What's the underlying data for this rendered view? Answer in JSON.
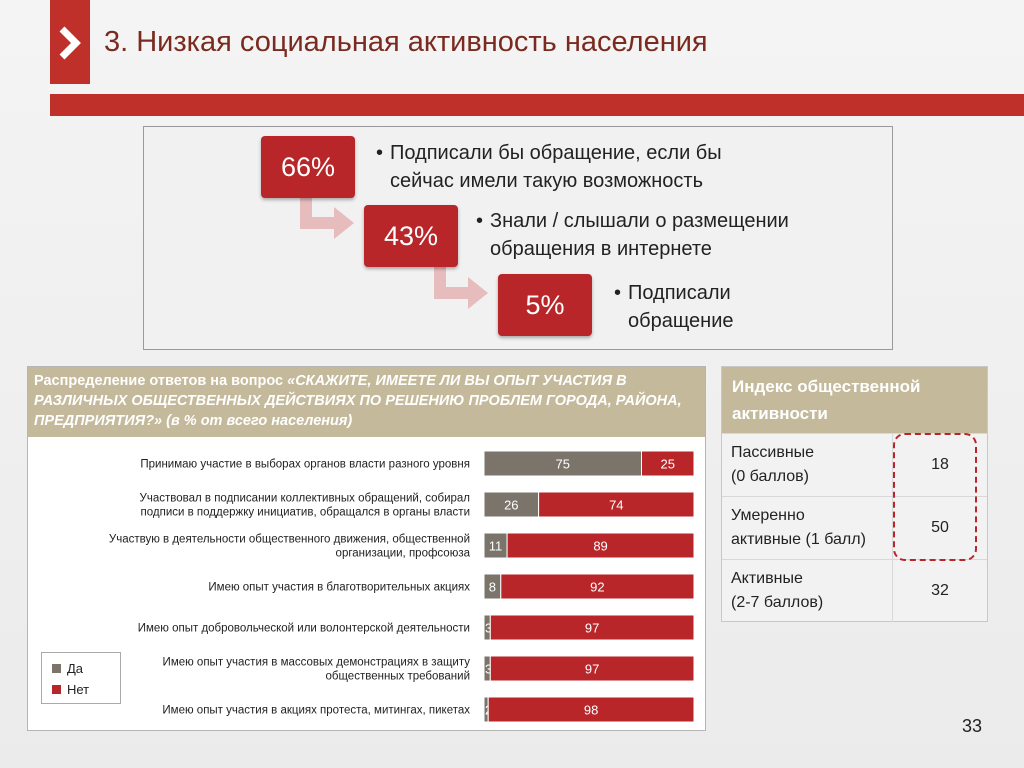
{
  "slide": {
    "title": "3. Низкая социальная активность населения",
    "page_number": "33"
  },
  "funnel": [
    {
      "percent": "66%",
      "bullet": "•",
      "text_line1": "Подписали бы обращение, если бы",
      "text_line2": "сейчас имели такую возможность"
    },
    {
      "percent": "43%",
      "bullet": "•",
      "text_line1": "Знали / слышали  о размещении",
      "text_line2": "обращения в интернете"
    },
    {
      "percent": "5%",
      "bullet": "•",
      "text_line1": "Подписали",
      "text_line2": "обращение"
    }
  ],
  "question": {
    "prefix": "Распределение ответов на вопрос ",
    "question_text": "«СКАЖИТЕ, ИМЕЕТЕ ЛИ ВЫ ОПЫТ УЧАСТИЯ В РАЗЛИЧНЫХ ОБЩЕСТВЕННЫХ ДЕЙСТВИЯХ ПО РЕШЕНИЮ ПРОБЛЕМ ГОРОДА, РАЙОНА, ПРЕДПРИЯТИЯ?»",
    "suffix": " (в % от всего населения)"
  },
  "chart_data": {
    "type": "bar",
    "orientation": "horizontal",
    "stacked": true,
    "categories": [
      [
        "Принимаю участие в выборах органов власти разного уровня"
      ],
      [
        "Участвовал в подписании коллективных обращений, собирал",
        "подписи  в поддержку инициатив, обращался в органы власти"
      ],
      [
        "Участвую в деятельности общественного движения, общественной",
        "организации, профсоюза"
      ],
      [
        "Имею опыт участия в благотворительных акциях"
      ],
      [
        "Имею опыт добровольческой или волонтерской деятельности"
      ],
      [
        "Имею опыт участия в массовых демонстрациях в защиту",
        "общественных требований"
      ],
      [
        "Имею опыт участия в акциях протеста, митингах, пикетах"
      ]
    ],
    "series": [
      {
        "name": "Да",
        "color": "#7a746b",
        "values": [
          75,
          26,
          11,
          8,
          3,
          3,
          2
        ]
      },
      {
        "name": "Нет",
        "color": "#b8262a",
        "values": [
          25,
          74,
          89,
          92,
          97,
          97,
          98
        ]
      }
    ],
    "xlim": [
      0,
      100
    ],
    "legend_position": "bottom-left"
  },
  "index_table": {
    "title_line1": "Индекс общественной",
    "title_line2": "активности",
    "rows": [
      {
        "label_line1": "Пассивные",
        "label_line2": "(0 баллов)",
        "value": "18"
      },
      {
        "label_line1": "Умеренно",
        "label_line2": "активные (1 балл)",
        "value": "50"
      },
      {
        "label_line1": "Активные",
        "label_line2": "(2-7 баллов)",
        "value": "32"
      }
    ]
  },
  "colors": {
    "accent_red": "#c0302a",
    "box_red": "#b8262a",
    "header_tan": "#c4b99a",
    "bar_gray": "#7a746b"
  }
}
